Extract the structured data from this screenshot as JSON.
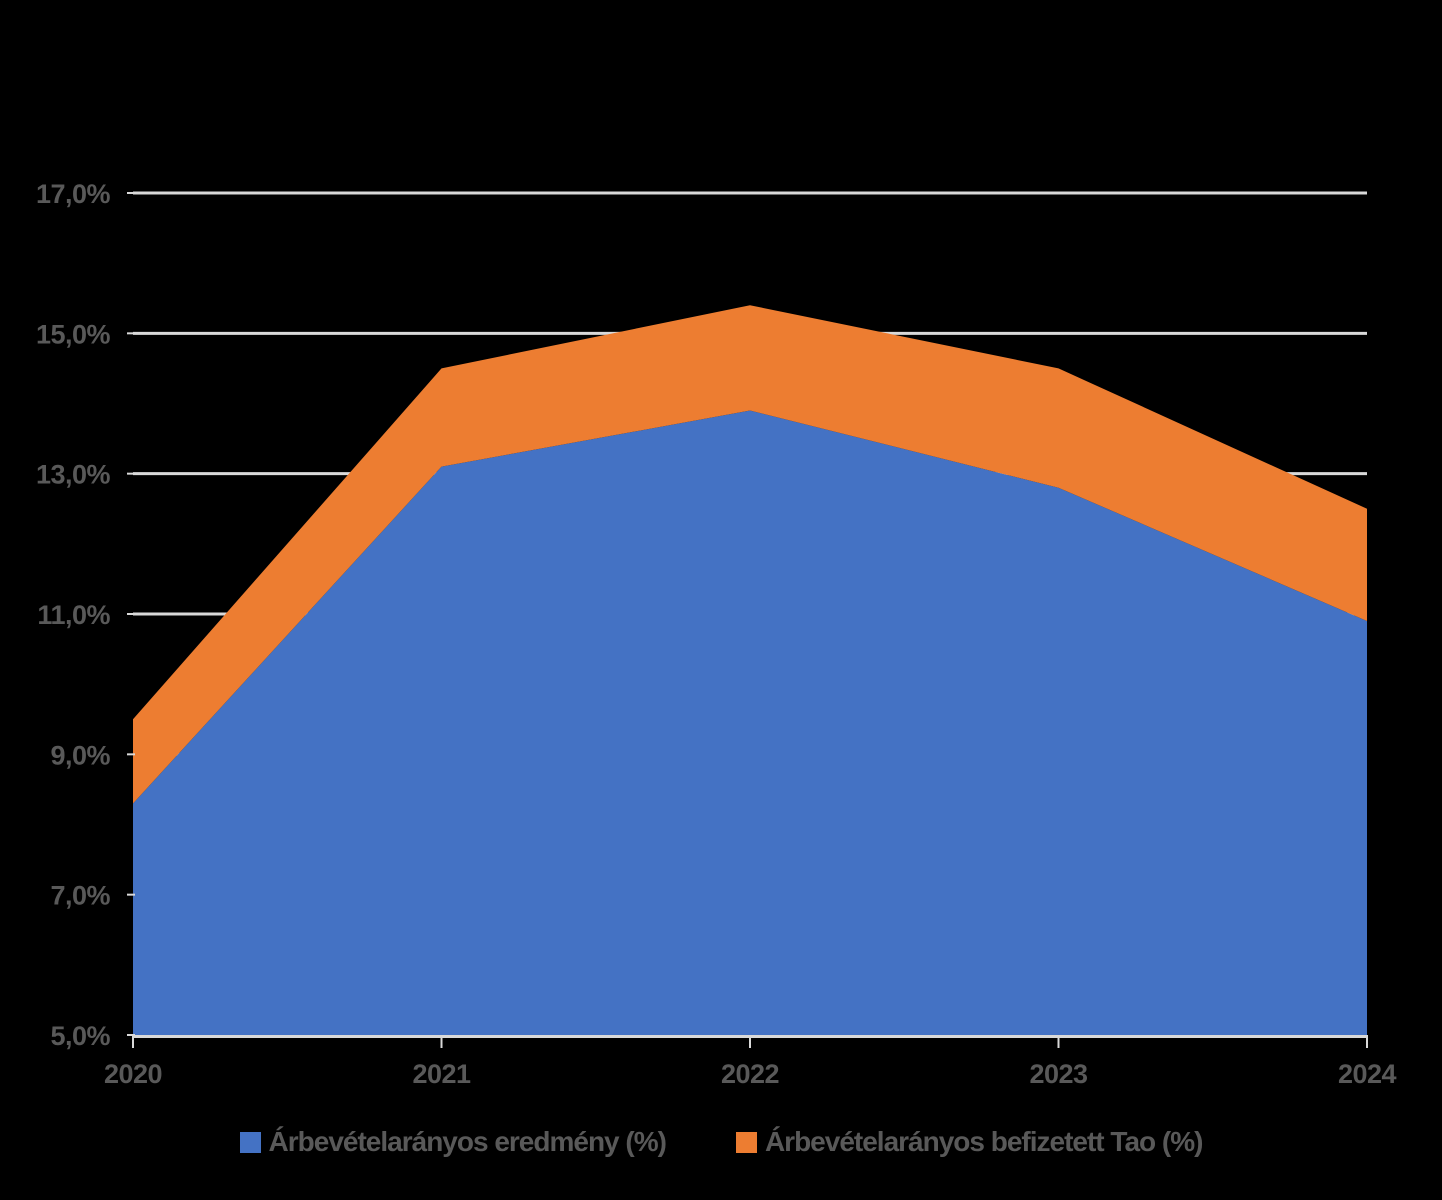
{
  "chart_data": {
    "type": "area",
    "stacked": true,
    "categories": [
      "2020",
      "2021",
      "2022",
      "2023",
      "2024"
    ],
    "series": [
      {
        "name": "Árbevételarányos eredmény (%)",
        "values": [
          8.3,
          13.1,
          13.9,
          12.8,
          10.9
        ],
        "color": "#4472C4"
      },
      {
        "name": "Árbevételarányos befizetett Tao (%)",
        "values": [
          1.2,
          1.4,
          1.5,
          1.7,
          1.6
        ],
        "color": "#ED7D31"
      }
    ],
    "stacked_totals": [
      9.5,
      14.5,
      15.4,
      14.5,
      12.5
    ],
    "xlabel": "",
    "ylabel": "",
    "y_axis": {
      "min": 5,
      "max": 17,
      "tick_step": 2,
      "tick_labels": [
        "5,0%",
        "7,0%",
        "9,0%",
        "11,0%",
        "13,0%",
        "15,0%",
        "17,0%"
      ]
    },
    "grid": true,
    "legend_position": "bottom"
  },
  "colors": {
    "background": "#000000",
    "gridline": "#D9D9D9",
    "axis_line": "#D9D9D9",
    "axis_text": "#595959"
  }
}
